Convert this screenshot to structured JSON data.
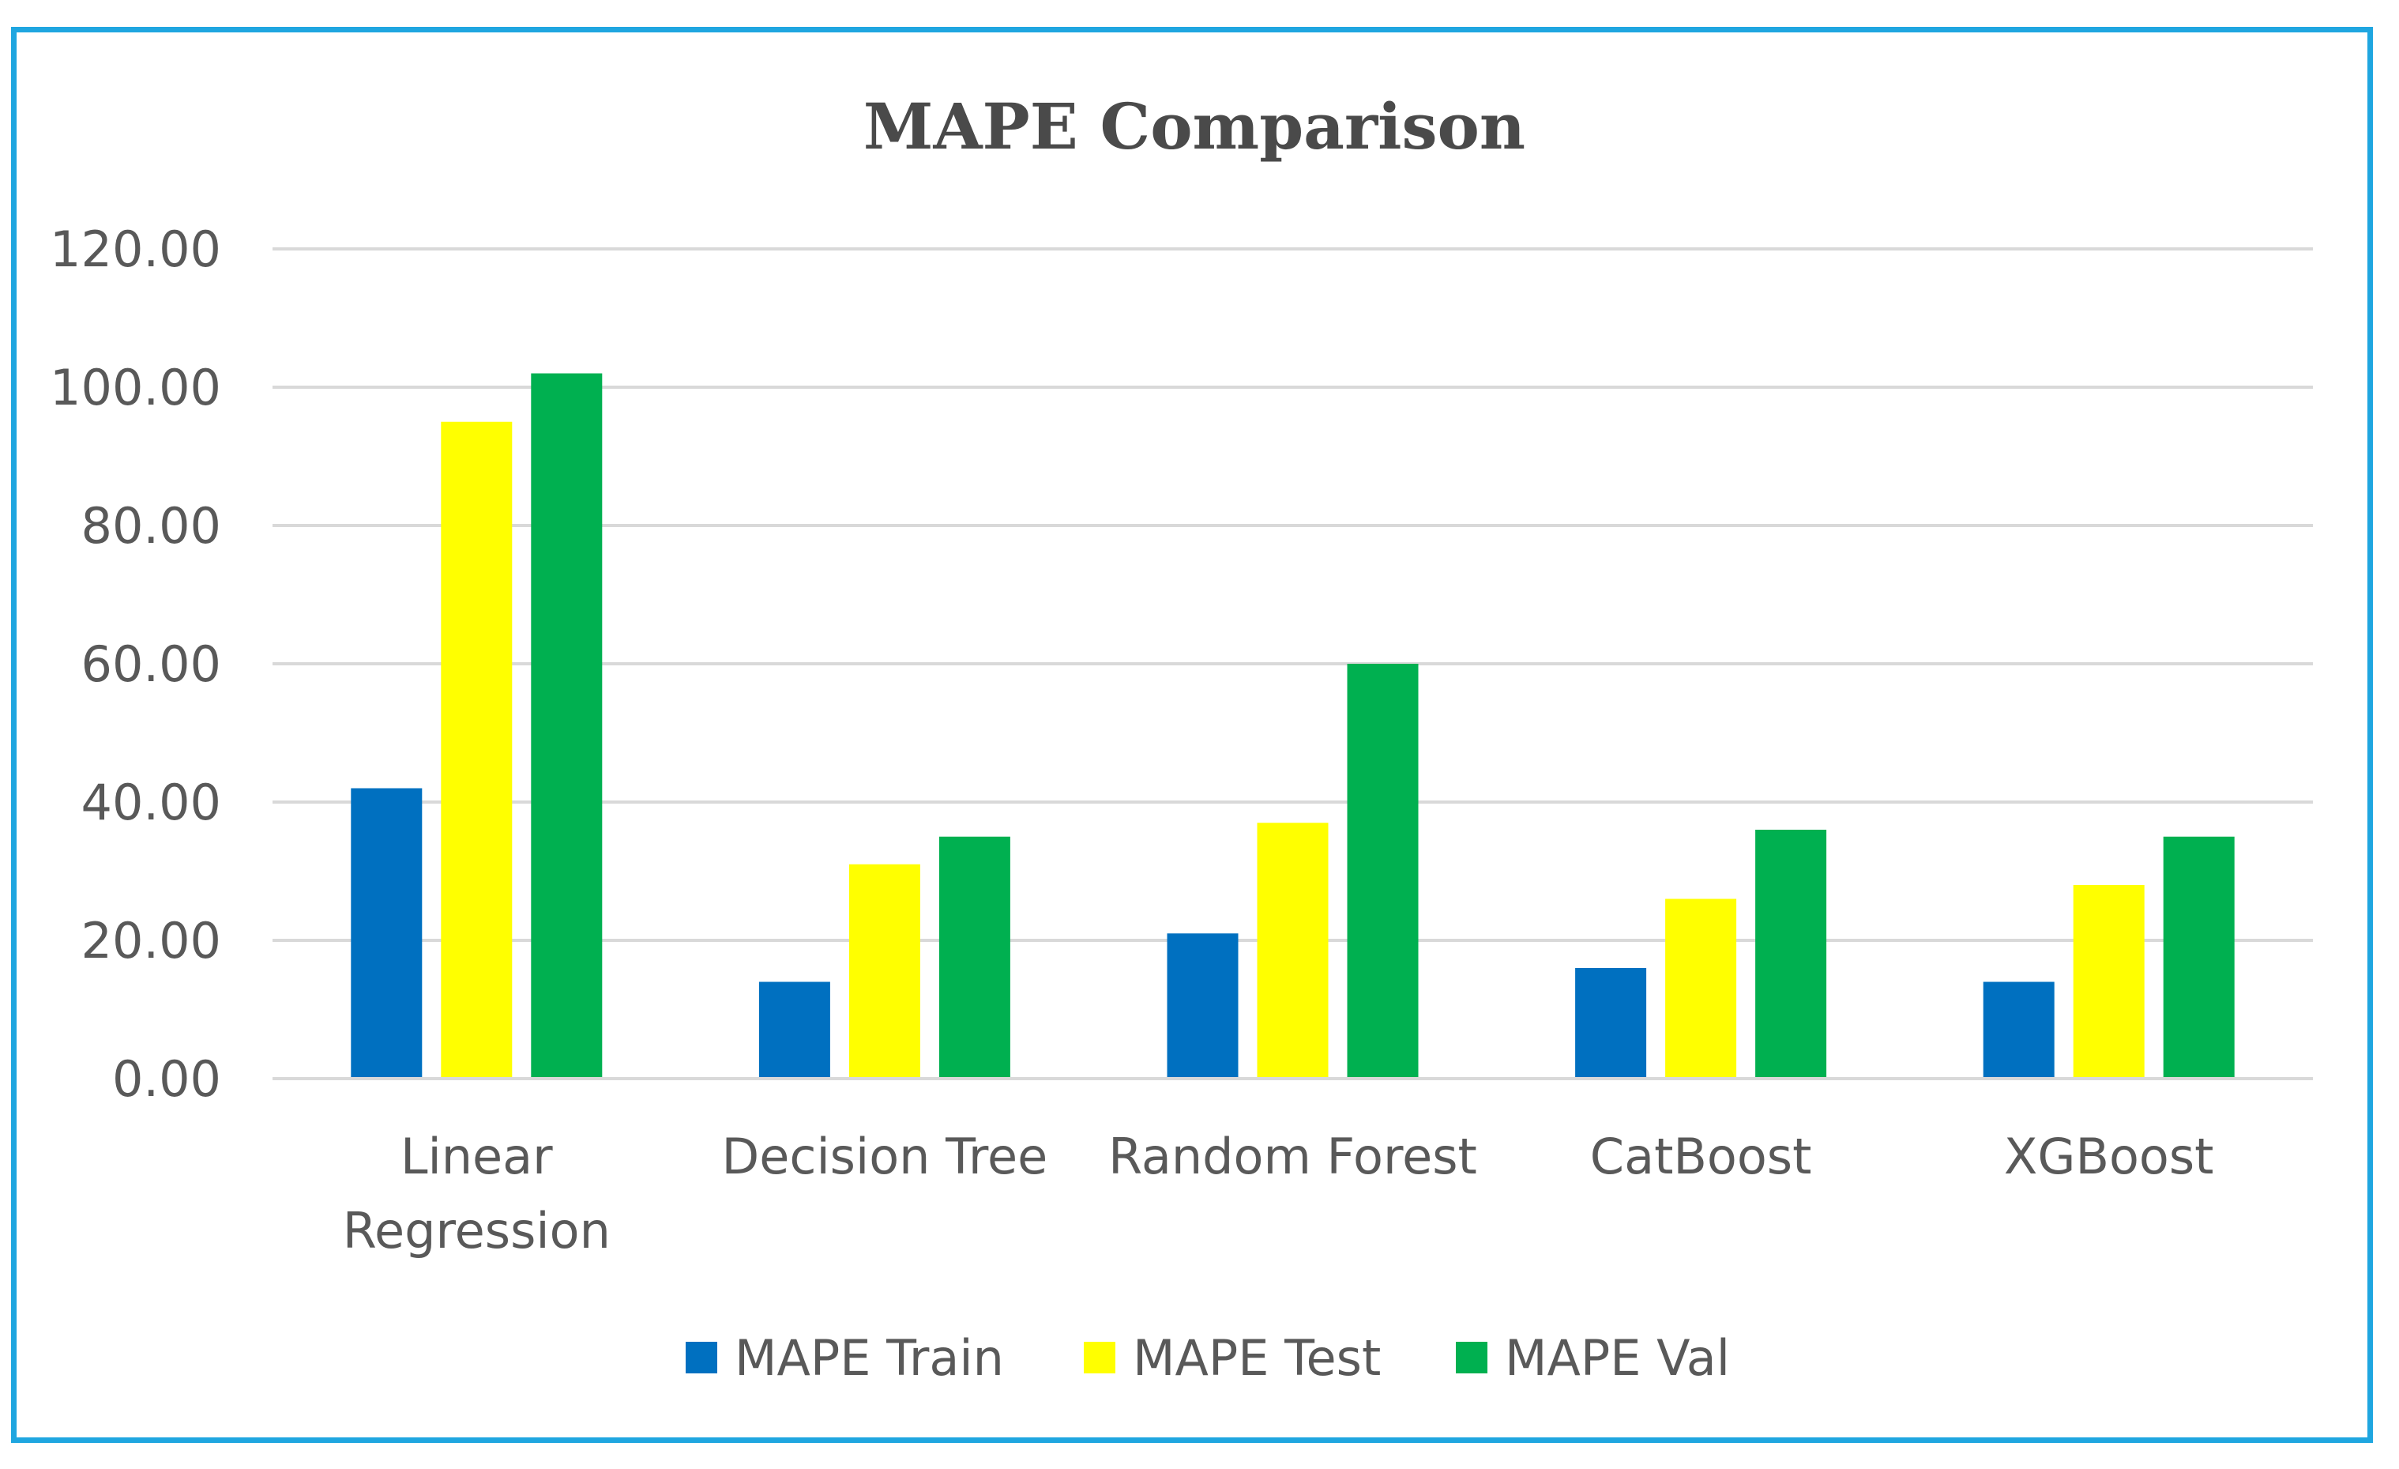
{
  "chart_data": {
    "type": "bar",
    "title": "MAPE Comparison",
    "xlabel": "",
    "ylabel": "",
    "ylim": [
      0,
      120
    ],
    "yticks": [
      "0.00",
      "20.00",
      "40.00",
      "60.00",
      "80.00",
      "100.00",
      "120.00"
    ],
    "ytick_values": [
      0,
      20,
      40,
      60,
      80,
      100,
      120
    ],
    "categories": [
      [
        "Linear",
        "Regression"
      ],
      [
        "Decision Tree"
      ],
      [
        "Random Forest"
      ],
      [
        "CatBoost"
      ],
      [
        "XGBoost"
      ]
    ],
    "series": [
      {
        "name": "MAPE Train",
        "color": "#0070c0",
        "values": [
          42,
          14,
          21,
          16,
          14
        ]
      },
      {
        "name": "MAPE Test",
        "color": "#ffff00",
        "values": [
          95,
          31,
          37,
          26,
          28
        ]
      },
      {
        "name": "MAPE Val",
        "color": "#00b050",
        "values": [
          102,
          35,
          60,
          36,
          35
        ]
      }
    ],
    "legend_position": "bottom",
    "grid": true
  }
}
